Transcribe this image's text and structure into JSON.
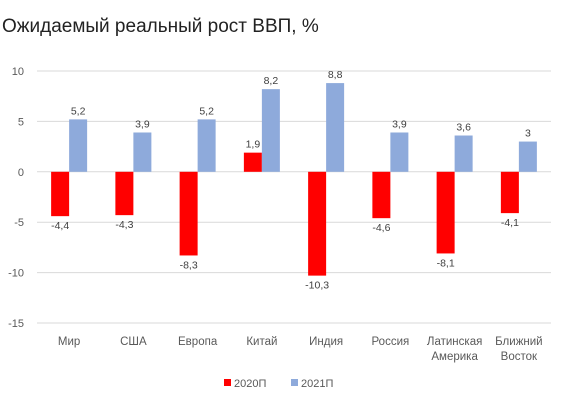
{
  "chart_data": {
    "type": "bar",
    "title": "Ожидаемый реальный рост ВВП, %",
    "categories": [
      [
        "Мир"
      ],
      [
        "США"
      ],
      [
        "Европа"
      ],
      [
        "Китай"
      ],
      [
        "Индия"
      ],
      [
        "Россия"
      ],
      [
        "Латинская",
        "Америка"
      ],
      [
        "Ближний",
        "Восток"
      ]
    ],
    "series": [
      {
        "name": "2020П",
        "color": "#ff0000",
        "values": [
          -4.4,
          -4.3,
          -8.3,
          1.9,
          -10.3,
          -4.6,
          -8.1,
          -4.1
        ],
        "labels": [
          "-4,4",
          "-4,3",
          "-8,3",
          "1,9",
          "-10,3",
          "-4,6",
          "-8,1",
          "-4,1"
        ]
      },
      {
        "name": "2021П",
        "color": "#8eaadb",
        "values": [
          5.2,
          3.9,
          5.2,
          8.2,
          8.8,
          3.9,
          3.6,
          3.0
        ],
        "labels": [
          "5,2",
          "3,9",
          "5,2",
          "8,2",
          "8,8",
          "3,9",
          "3,6",
          "3"
        ]
      }
    ],
    "ylim": [
      -15,
      10
    ],
    "yticks": [
      10,
      5,
      0,
      -5,
      -10,
      -15
    ],
    "grid": true,
    "legend": "bottom"
  }
}
